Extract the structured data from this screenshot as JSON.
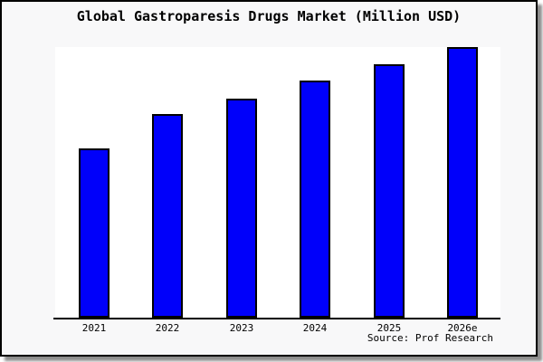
{
  "figure": {
    "title": "Global Gastroparesis Drugs Market (Million USD)",
    "source": "Source: Prof Research"
  },
  "chart_data": {
    "type": "bar",
    "title": "Global Gastroparesis Drugs Market (Million USD)",
    "categories": [
      "2021",
      "2022",
      "2023",
      "2024",
      "2025",
      "2026e"
    ],
    "values": [
      62.5,
      75.3,
      80.9,
      87.6,
      93.6,
      100
    ],
    "values_note": "no y-axis scale shown; values estimated relative to tallest bar = 100",
    "xlabel": "",
    "ylabel": "",
    "ylim": [
      0,
      100
    ],
    "grid": false,
    "legend": false,
    "y_axis_visible": false,
    "bar_color": "#0000fa",
    "bar_border_color": "#000000",
    "source": "Source: Prof Research"
  },
  "colors": {
    "frame_background": "#f8f8f9",
    "plot_background": "#ffffff",
    "frame_border": "#000000",
    "axis": "#000000"
  }
}
